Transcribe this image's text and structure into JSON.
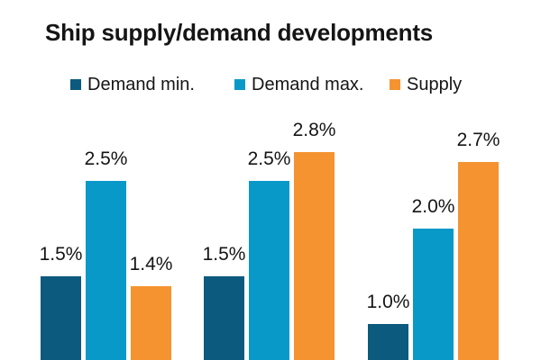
{
  "chart_data": {
    "type": "bar",
    "title": "Ship supply/demand developments",
    "legend_position": "top",
    "data_labels_visible": true,
    "axes_visible": false,
    "value_unit": "%",
    "group_count": 3,
    "series": [
      {
        "name": "Demand min.",
        "color": "#0C5A7D",
        "values": [
          1.5,
          1.5,
          1.0
        ],
        "labels": [
          "1.5%",
          "1.5%",
          "1.0%"
        ]
      },
      {
        "name": "Demand max.",
        "color": "#0999C9",
        "values": [
          2.5,
          2.5,
          2.0
        ],
        "labels": [
          "2.5%",
          "2.5%",
          "2.0%"
        ]
      },
      {
        "name": "Supply",
        "color": "#F4932F",
        "values": [
          1.4,
          2.8,
          2.7
        ],
        "labels": [
          "1.4%",
          "2.8%",
          "2.7%"
        ]
      }
    ]
  }
}
